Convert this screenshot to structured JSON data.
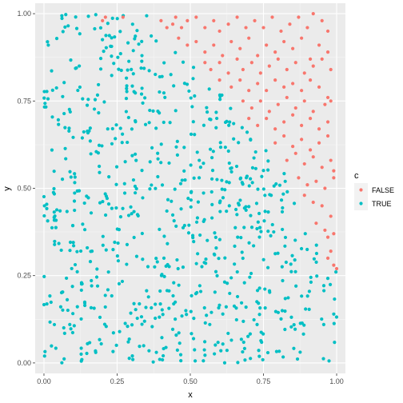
{
  "chart_data": {
    "type": "scatter",
    "title": "",
    "xlabel": "x",
    "ylabel": "y",
    "xlim": [
      -0.03,
      1.03
    ],
    "ylim": [
      -0.03,
      1.03
    ],
    "x_ticks": [
      0,
      0.25,
      0.5,
      0.75,
      1
    ],
    "x_tick_labels": [
      "0.00",
      "0.25",
      "0.50",
      "0.75",
      "1.00"
    ],
    "y_ticks": [
      0,
      0.25,
      0.5,
      0.75,
      1
    ],
    "y_tick_labels": [
      "0.00",
      "0.25",
      "0.50",
      "0.75",
      "1.00"
    ],
    "grid": true,
    "legend": {
      "title": "c",
      "position": "right",
      "entries": [
        {
          "label": "FALSE",
          "color": "#F8766D"
        },
        {
          "label": "TRUE",
          "color": "#00BFC4"
        }
      ]
    },
    "series": [
      {
        "name": "FALSE",
        "color": "#F8766D",
        "points": [
          [
            0.2,
            0.98
          ],
          [
            0.21,
            0.99
          ],
          [
            0.27,
            0.99
          ],
          [
            0.4,
            0.98
          ],
          [
            0.42,
            0.96
          ],
          [
            0.44,
            0.97
          ],
          [
            0.45,
            0.99
          ],
          [
            0.47,
            0.96
          ],
          [
            0.49,
            0.98
          ],
          [
            0.52,
            0.99
          ],
          [
            0.55,
            0.96
          ],
          [
            0.58,
            0.98
          ],
          [
            0.6,
            0.95
          ],
          [
            0.63,
            0.97
          ],
          [
            0.66,
            0.99
          ],
          [
            0.69,
            0.96
          ],
          [
            0.72,
            0.98
          ],
          [
            0.75,
            0.96
          ],
          [
            0.78,
            0.99
          ],
          [
            0.81,
            0.95
          ],
          [
            0.84,
            0.97
          ],
          [
            0.87,
            0.99
          ],
          [
            0.9,
            0.96
          ],
          [
            0.92,
            1.0
          ],
          [
            0.95,
            0.98
          ],
          [
            0.97,
            0.95
          ],
          [
            0.46,
            0.93
          ],
          [
            0.49,
            0.91
          ],
          [
            0.52,
            0.92
          ],
          [
            0.55,
            0.89
          ],
          [
            0.58,
            0.91
          ],
          [
            0.61,
            0.88
          ],
          [
            0.64,
            0.92
          ],
          [
            0.67,
            0.9
          ],
          [
            0.7,
            0.93
          ],
          [
            0.73,
            0.88
          ],
          [
            0.76,
            0.91
          ],
          [
            0.79,
            0.89
          ],
          [
            0.82,
            0.92
          ],
          [
            0.85,
            0.9
          ],
          [
            0.88,
            0.93
          ],
          [
            0.91,
            0.87
          ],
          [
            0.94,
            0.91
          ],
          [
            0.97,
            0.89
          ],
          [
            0.55,
            0.86
          ],
          [
            0.57,
            0.84
          ],
          [
            0.6,
            0.86
          ],
          [
            0.63,
            0.83
          ],
          [
            0.66,
            0.87
          ],
          [
            0.68,
            0.84
          ],
          [
            0.71,
            0.86
          ],
          [
            0.74,
            0.83
          ],
          [
            0.77,
            0.85
          ],
          [
            0.8,
            0.87
          ],
          [
            0.83,
            0.84
          ],
          [
            0.86,
            0.86
          ],
          [
            0.89,
            0.83
          ],
          [
            0.92,
            0.85
          ],
          [
            0.95,
            0.87
          ],
          [
            0.98,
            0.84
          ],
          [
            0.6,
            0.81
          ],
          [
            0.64,
            0.79
          ],
          [
            0.67,
            0.81
          ],
          [
            0.7,
            0.78
          ],
          [
            0.73,
            0.8
          ],
          [
            0.76,
            0.78
          ],
          [
            0.79,
            0.81
          ],
          [
            0.82,
            0.79
          ],
          [
            0.85,
            0.8
          ],
          [
            0.88,
            0.78
          ],
          [
            0.91,
            0.81
          ],
          [
            0.94,
            0.79
          ],
          [
            0.97,
            0.76
          ],
          [
            0.68,
            0.75
          ],
          [
            0.71,
            0.73
          ],
          [
            0.74,
            0.75
          ],
          [
            0.77,
            0.72
          ],
          [
            0.8,
            0.74
          ],
          [
            0.83,
            0.76
          ],
          [
            0.86,
            0.73
          ],
          [
            0.89,
            0.75
          ],
          [
            0.92,
            0.72
          ],
          [
            0.96,
            0.74
          ],
          [
            0.98,
            0.75
          ],
          [
            0.7,
            0.7
          ],
          [
            0.73,
            0.68
          ],
          [
            0.76,
            0.7
          ],
          [
            0.79,
            0.67
          ],
          [
            0.82,
            0.69
          ],
          [
            0.85,
            0.71
          ],
          [
            0.88,
            0.68
          ],
          [
            0.91,
            0.7
          ],
          [
            0.94,
            0.67
          ],
          [
            0.97,
            0.69
          ],
          [
            0.79,
            0.63
          ],
          [
            0.82,
            0.65
          ],
          [
            0.85,
            0.62
          ],
          [
            0.88,
            0.64
          ],
          [
            0.91,
            0.61
          ],
          [
            0.94,
            0.63
          ],
          [
            0.97,
            0.65
          ],
          [
            0.83,
            0.58
          ],
          [
            0.86,
            0.6
          ],
          [
            0.89,
            0.57
          ],
          [
            0.92,
            0.59
          ],
          [
            0.95,
            0.56
          ],
          [
            0.98,
            0.58
          ],
          [
            0.87,
            0.53
          ],
          [
            0.9,
            0.51
          ],
          [
            0.93,
            0.52
          ],
          [
            0.96,
            0.5
          ],
          [
            0.99,
            0.53
          ],
          [
            0.99,
            0.55
          ],
          [
            0.89,
            0.48
          ],
          [
            0.92,
            0.46
          ],
          [
            0.95,
            0.45
          ],
          [
            0.98,
            0.42
          ],
          [
            0.93,
            0.4
          ],
          [
            0.96,
            0.38
          ],
          [
            0.97,
            0.36
          ],
          [
            0.99,
            0.37
          ],
          [
            0.97,
            0.3
          ],
          [
            0.98,
            0.32
          ],
          [
            0.99,
            0.28
          ],
          [
            1.0,
            0.27
          ]
        ]
      },
      {
        "name": "TRUE",
        "color": "#00BFC4"
      }
    ]
  }
}
